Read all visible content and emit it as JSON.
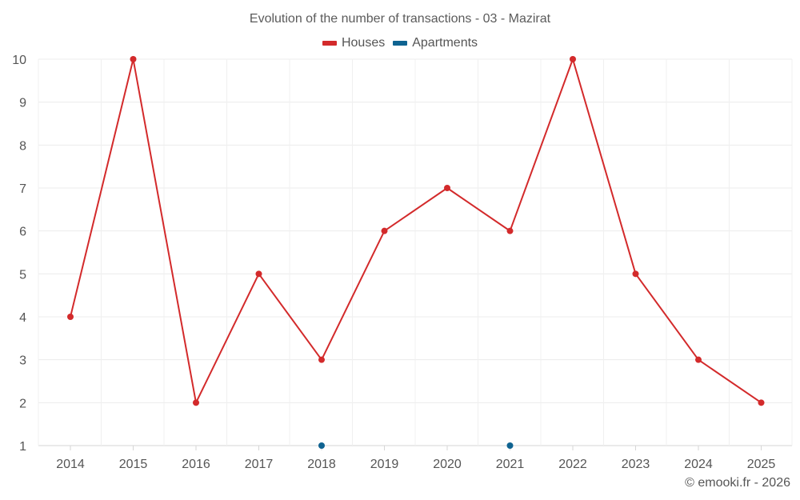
{
  "chart_data": {
    "type": "line",
    "title": "Evolution of the number of transactions - 03 - Mazirat",
    "categories": [
      "2014",
      "2015",
      "2016",
      "2017",
      "2018",
      "2019",
      "2020",
      "2021",
      "2022",
      "2023",
      "2024",
      "2025"
    ],
    "series": [
      {
        "name": "Houses",
        "color": "#d32a2b",
        "values": [
          4,
          10,
          2,
          5,
          3,
          6,
          7,
          6,
          10,
          5,
          3,
          2
        ]
      },
      {
        "name": "Apartments",
        "color": "#0f6391",
        "values": [
          null,
          null,
          null,
          null,
          1,
          null,
          null,
          1,
          null,
          null,
          null,
          null
        ]
      }
    ],
    "ylim": [
      1,
      10
    ],
    "yticks": [
      1,
      2,
      3,
      4,
      5,
      6,
      7,
      8,
      9,
      10
    ],
    "grid": true,
    "legend": "top-center"
  },
  "credit": "© emooki.fr - 2026"
}
